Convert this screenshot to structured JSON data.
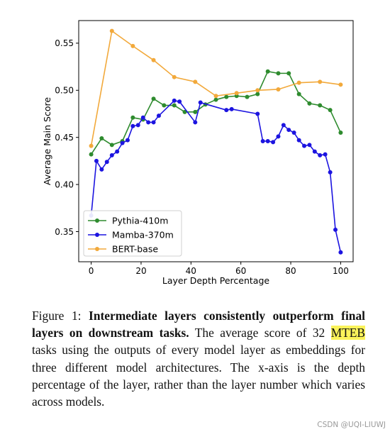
{
  "chart_data": {
    "type": "line",
    "xlabel": "Layer Depth Percentage",
    "ylabel": "Average Main Score",
    "xlim": [
      -5,
      105
    ],
    "ylim": [
      0.318,
      0.574
    ],
    "xticks": [
      0,
      20,
      40,
      60,
      80,
      100
    ],
    "xtick_labels": [
      "0",
      "20",
      "40",
      "60",
      "80",
      "100"
    ],
    "yticks": [
      0.35,
      0.4,
      0.45,
      0.5,
      0.55
    ],
    "ytick_labels": [
      "0.35",
      "0.40",
      "0.45",
      "0.50",
      "0.55"
    ],
    "grid": false,
    "legend_position": "lower-left",
    "series": [
      {
        "name": "Pythia-410m",
        "color": "#2e8b2e",
        "x": [
          0,
          4.2,
          8.3,
          12.5,
          16.7,
          20.8,
          25,
          29.2,
          33.3,
          37.5,
          41.7,
          45.8,
          50,
          54.2,
          58.3,
          62.5,
          66.7,
          70.8,
          75,
          79.2,
          83.3,
          87.5,
          91.7,
          95.8,
          100
        ],
        "y": [
          0.432,
          0.449,
          0.442,
          0.446,
          0.471,
          0.469,
          0.491,
          0.484,
          0.484,
          0.477,
          0.477,
          0.485,
          0.49,
          0.493,
          0.494,
          0.493,
          0.496,
          0.52,
          0.518,
          0.518,
          0.496,
          0.486,
          0.484,
          0.479,
          0.455
        ]
      },
      {
        "name": "Mamba-370m",
        "color": "#1c14e0",
        "x": [
          0,
          2.1,
          4.2,
          6.3,
          8.3,
          10.4,
          12.5,
          14.6,
          16.7,
          18.8,
          20.8,
          22.9,
          25,
          27.1,
          33.3,
          35.4,
          41.7,
          43.8,
          54.2,
          56.3,
          66.7,
          68.8,
          70.8,
          72.9,
          75,
          77.1,
          79.2,
          81.3,
          83.3,
          85.4,
          87.5,
          89.6,
          91.7,
          93.8,
          95.8,
          97.9,
          100
        ],
        "y": [
          0.367,
          0.425,
          0.416,
          0.424,
          0.431,
          0.435,
          0.444,
          0.447,
          0.462,
          0.463,
          0.471,
          0.466,
          0.466,
          0.473,
          0.489,
          0.488,
          0.466,
          0.487,
          0.479,
          0.48,
          0.475,
          0.446,
          0.446,
          0.445,
          0.451,
          0.463,
          0.458,
          0.455,
          0.447,
          0.441,
          0.442,
          0.435,
          0.431,
          0.432,
          0.413,
          0.352,
          0.328
        ]
      },
      {
        "name": "BERT-base",
        "color": "#f2a93b",
        "x": [
          0,
          8.3,
          16.7,
          25,
          33.3,
          41.7,
          50,
          58.3,
          66.7,
          75,
          83.3,
          91.7,
          100
        ],
        "y": [
          0.441,
          0.563,
          0.547,
          0.532,
          0.514,
          0.509,
          0.494,
          0.497,
          0.5,
          0.501,
          0.508,
          0.509,
          0.506
        ]
      }
    ]
  },
  "caption": {
    "figure_label": "Figure 1:",
    "bold_title": "Intermediate layers consistently outperform final layers on downstream tasks.",
    "text_before_highlight": "The average score of 32",
    "highlight": "MTEB",
    "text_after_highlight": "tasks using the outputs of every model layer as embeddings for three different model architectures. The x-axis is the depth percentage of the layer, rather than the layer number which varies across models."
  },
  "watermark": "CSDN @UQI-LIUWJ",
  "colors": {
    "pythia": "#2e8b2e",
    "mamba": "#1c14e0",
    "bert": "#f2a93b",
    "highlight": "#fbf35a"
  }
}
